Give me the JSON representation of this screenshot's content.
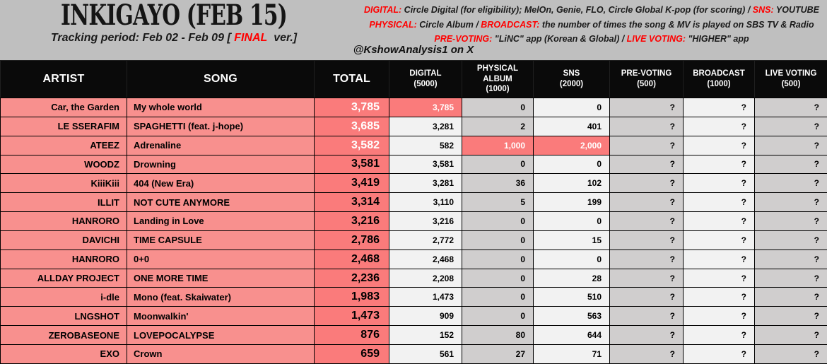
{
  "header": {
    "title": "INKIGAYO (FEB 15)",
    "tracking": {
      "prefix": "Tracking period: Feb 02 - Feb 09 [ ",
      "highlight": "FINAL",
      "suffix": "  ver.]"
    },
    "credit": "@KshowAnalysis1 on X",
    "legend_lines": [
      {
        "segments": [
          {
            "text": "DIGITAL:",
            "red": true
          },
          {
            "text": " Circle Digital (for eligibility); MelOn, Genie, FLO, Circle Global K-pop (for scoring) / ",
            "red": false
          },
          {
            "text": "SNS:",
            "red": true
          },
          {
            "text": " YOUTUBE",
            "red": false
          }
        ]
      },
      {
        "segments": [
          {
            "text": "PHYSICAL:",
            "red": true
          },
          {
            "text": " Circle Album / ",
            "red": false
          },
          {
            "text": "BROADCAST:",
            "red": true
          },
          {
            "text": " the number of times the song & MV is played on SBS TV & Radio",
            "red": false
          }
        ]
      },
      {
        "segments": [
          {
            "text": "PRE-VOTING:",
            "red": true
          },
          {
            "text": " \"LiNC\" app (Korean & Global) / ",
            "red": false
          },
          {
            "text": "LIVE VOTING:",
            "red": true
          },
          {
            "text": " \"HIGHER\" app",
            "red": false
          }
        ]
      }
    ]
  },
  "table": {
    "columns": [
      {
        "key": "artist",
        "label": "ARTIST",
        "weight": ""
      },
      {
        "key": "song",
        "label": "SONG",
        "weight": ""
      },
      {
        "key": "total",
        "label": "TOTAL",
        "weight": ""
      },
      {
        "key": "digital",
        "label": "DIGITAL",
        "weight": "(5000)"
      },
      {
        "key": "physical",
        "label": "PHYSICAL ALBUM",
        "weight": "(1000)"
      },
      {
        "key": "sns",
        "label": "SNS",
        "weight": "(2000)"
      },
      {
        "key": "pre_voting",
        "label": "PRE-VOTING",
        "weight": "(500)"
      },
      {
        "key": "broadcast",
        "label": "BROADCAST",
        "weight": "(1000)"
      },
      {
        "key": "live_voting",
        "label": "LIVE VOTING",
        "weight": "(500)"
      }
    ]
  },
  "chart_data": {
    "type": "table",
    "title": "INKIGAYO (FEB 15)",
    "subtitle": "Tracking period: Feb 02 - Feb 09 [ FINAL ver.]",
    "columns": [
      "ARTIST",
      "SONG",
      "TOTAL",
      "DIGITAL (5000)",
      "PHYSICAL ALBUM (1000)",
      "SNS (2000)",
      "PRE-VOTING (500)",
      "BROADCAST (1000)",
      "LIVE VOTING (500)"
    ],
    "rows": [
      {
        "artist": "Car, the Garden",
        "song": "My whole world",
        "total": "3,785",
        "digital": "3,785",
        "physical": "0",
        "sns": "0",
        "pre_voting": "?",
        "broadcast": "?",
        "live_voting": "?",
        "highlight_cells": [
          "digital"
        ],
        "total_style": "white-on-red"
      },
      {
        "artist": "LE SSERAFIM",
        "song": "SPAGHETTI (feat. j-hope)",
        "total": "3,685",
        "digital": "3,281",
        "physical": "2",
        "sns": "401",
        "pre_voting": "?",
        "broadcast": "?",
        "live_voting": "?",
        "highlight_cells": [],
        "total_style": "white-on-red"
      },
      {
        "artist": "ATEEZ",
        "song": "Adrenaline",
        "total": "3,582",
        "digital": "582",
        "physical": "1,000",
        "sns": "2,000",
        "pre_voting": "?",
        "broadcast": "?",
        "live_voting": "?",
        "highlight_cells": [
          "physical",
          "sns"
        ],
        "total_style": "white-on-red"
      },
      {
        "artist": "WOODZ",
        "song": "Drowning",
        "total": "3,581",
        "digital": "3,581",
        "physical": "0",
        "sns": "0",
        "pre_voting": "?",
        "broadcast": "?",
        "live_voting": "?",
        "highlight_cells": [],
        "total_style": "black"
      },
      {
        "artist": "KiiiKiii",
        "song": "404 (New Era)",
        "total": "3,419",
        "digital": "3,281",
        "physical": "36",
        "sns": "102",
        "pre_voting": "?",
        "broadcast": "?",
        "live_voting": "?",
        "highlight_cells": [],
        "total_style": "black"
      },
      {
        "artist": "ILLIT",
        "song": "NOT CUTE ANYMORE",
        "total": "3,314",
        "digital": "3,110",
        "physical": "5",
        "sns": "199",
        "pre_voting": "?",
        "broadcast": "?",
        "live_voting": "?",
        "highlight_cells": [],
        "total_style": "black"
      },
      {
        "artist": "HANRORO",
        "song": "Landing in Love",
        "total": "3,216",
        "digital": "3,216",
        "physical": "0",
        "sns": "0",
        "pre_voting": "?",
        "broadcast": "?",
        "live_voting": "?",
        "highlight_cells": [],
        "total_style": "black"
      },
      {
        "artist": "DAVICHI",
        "song": "TIME CAPSULE",
        "total": "2,786",
        "digital": "2,772",
        "physical": "0",
        "sns": "15",
        "pre_voting": "?",
        "broadcast": "?",
        "live_voting": "?",
        "highlight_cells": [],
        "total_style": "black"
      },
      {
        "artist": "HANRORO",
        "song": "0+0",
        "total": "2,468",
        "digital": "2,468",
        "physical": "0",
        "sns": "0",
        "pre_voting": "?",
        "broadcast": "?",
        "live_voting": "?",
        "highlight_cells": [],
        "total_style": "black"
      },
      {
        "artist": "ALLDAY PROJECT",
        "song": "ONE MORE TIME",
        "total": "2,236",
        "digital": "2,208",
        "physical": "0",
        "sns": "28",
        "pre_voting": "?",
        "broadcast": "?",
        "live_voting": "?",
        "highlight_cells": [],
        "total_style": "black"
      },
      {
        "artist": "i-dle",
        "song": "Mono (feat. Skaiwater)",
        "total": "1,983",
        "digital": "1,473",
        "physical": "0",
        "sns": "510",
        "pre_voting": "?",
        "broadcast": "?",
        "live_voting": "?",
        "highlight_cells": [],
        "total_style": "black"
      },
      {
        "artist": "LNGSHOT",
        "song": "Moonwalkin'",
        "total": "1,473",
        "digital": "909",
        "physical": "0",
        "sns": "563",
        "pre_voting": "?",
        "broadcast": "?",
        "live_voting": "?",
        "highlight_cells": [],
        "total_style": "black"
      },
      {
        "artist": "ZEROBASEONE",
        "song": "LOVEPOCALYPSE",
        "total": "876",
        "digital": "152",
        "physical": "80",
        "sns": "644",
        "pre_voting": "?",
        "broadcast": "?",
        "live_voting": "?",
        "highlight_cells": [],
        "total_style": "black"
      },
      {
        "artist": "EXO",
        "song": "Crown",
        "total": "659",
        "digital": "561",
        "physical": "27",
        "sns": "71",
        "pre_voting": "?",
        "broadcast": "?",
        "live_voting": "?",
        "highlight_cells": [],
        "total_style": "black"
      }
    ]
  },
  "colors": {
    "banner_bg": "#BFBFBF",
    "header_bg": "#0A0A0A",
    "header_text": "#FFFFFF",
    "row_pink": "#F8908E",
    "row_red": "#FA7B7B",
    "col_light": "#F2F2F2",
    "col_gray": "#D0CECE",
    "grid_black": "#000000",
    "accent_red": "#FF0000"
  }
}
